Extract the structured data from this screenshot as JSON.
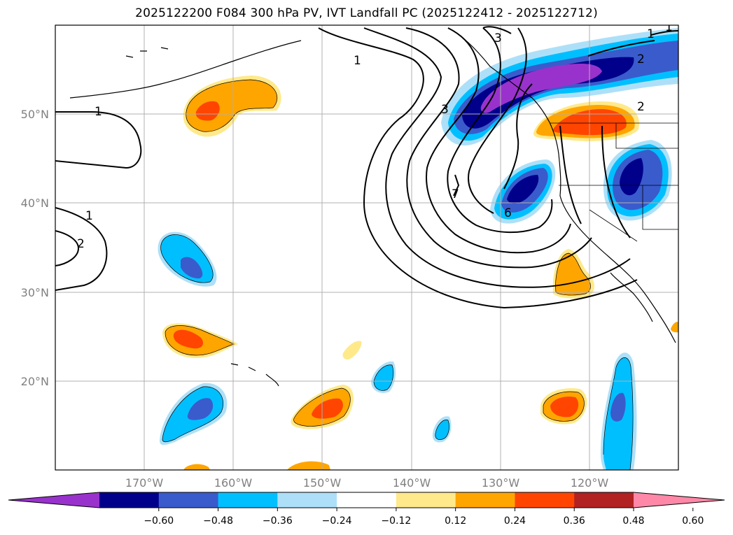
{
  "title": "2025122200 F084 300 hPa PV, IVT Landfall PC (2025122412 - 2025122712)",
  "map": {
    "lon_range": [
      -180,
      -110
    ],
    "lat_range": [
      10,
      60
    ],
    "lat_ticks": [
      {
        "value": 50,
        "label": "50°N"
      },
      {
        "value": 40,
        "label": "40°N"
      },
      {
        "value": 30,
        "label": "30°N"
      },
      {
        "value": 20,
        "label": "20°N"
      }
    ],
    "lon_ticks": [
      {
        "value": -170,
        "label": "170°W"
      },
      {
        "value": -160,
        "label": "160°W"
      },
      {
        "value": -150,
        "label": "150°W"
      },
      {
        "value": -140,
        "label": "140°W"
      },
      {
        "value": -130,
        "label": "130°W"
      },
      {
        "value": -120,
        "label": "120°W"
      }
    ],
    "grid": true,
    "contour_labels": [
      "1",
      "1",
      "1",
      "2",
      "3",
      "3",
      "1",
      "2",
      "2",
      "6",
      "7",
      "1"
    ]
  },
  "colorbar": {
    "ticks": [
      "−0.60",
      "−0.48",
      "−0.36",
      "−0.24",
      "−0.12",
      "0.12",
      "0.24",
      "0.36",
      "0.48",
      "0.60"
    ],
    "colors": [
      "#9932cc",
      "#00008b",
      "#3a5bcc",
      "#00bfff",
      "#ade0f8",
      "#ffffff",
      "#ffe98a",
      "#ffa500",
      "#ff4500",
      "#b22222",
      "#ff88a8"
    ]
  }
}
